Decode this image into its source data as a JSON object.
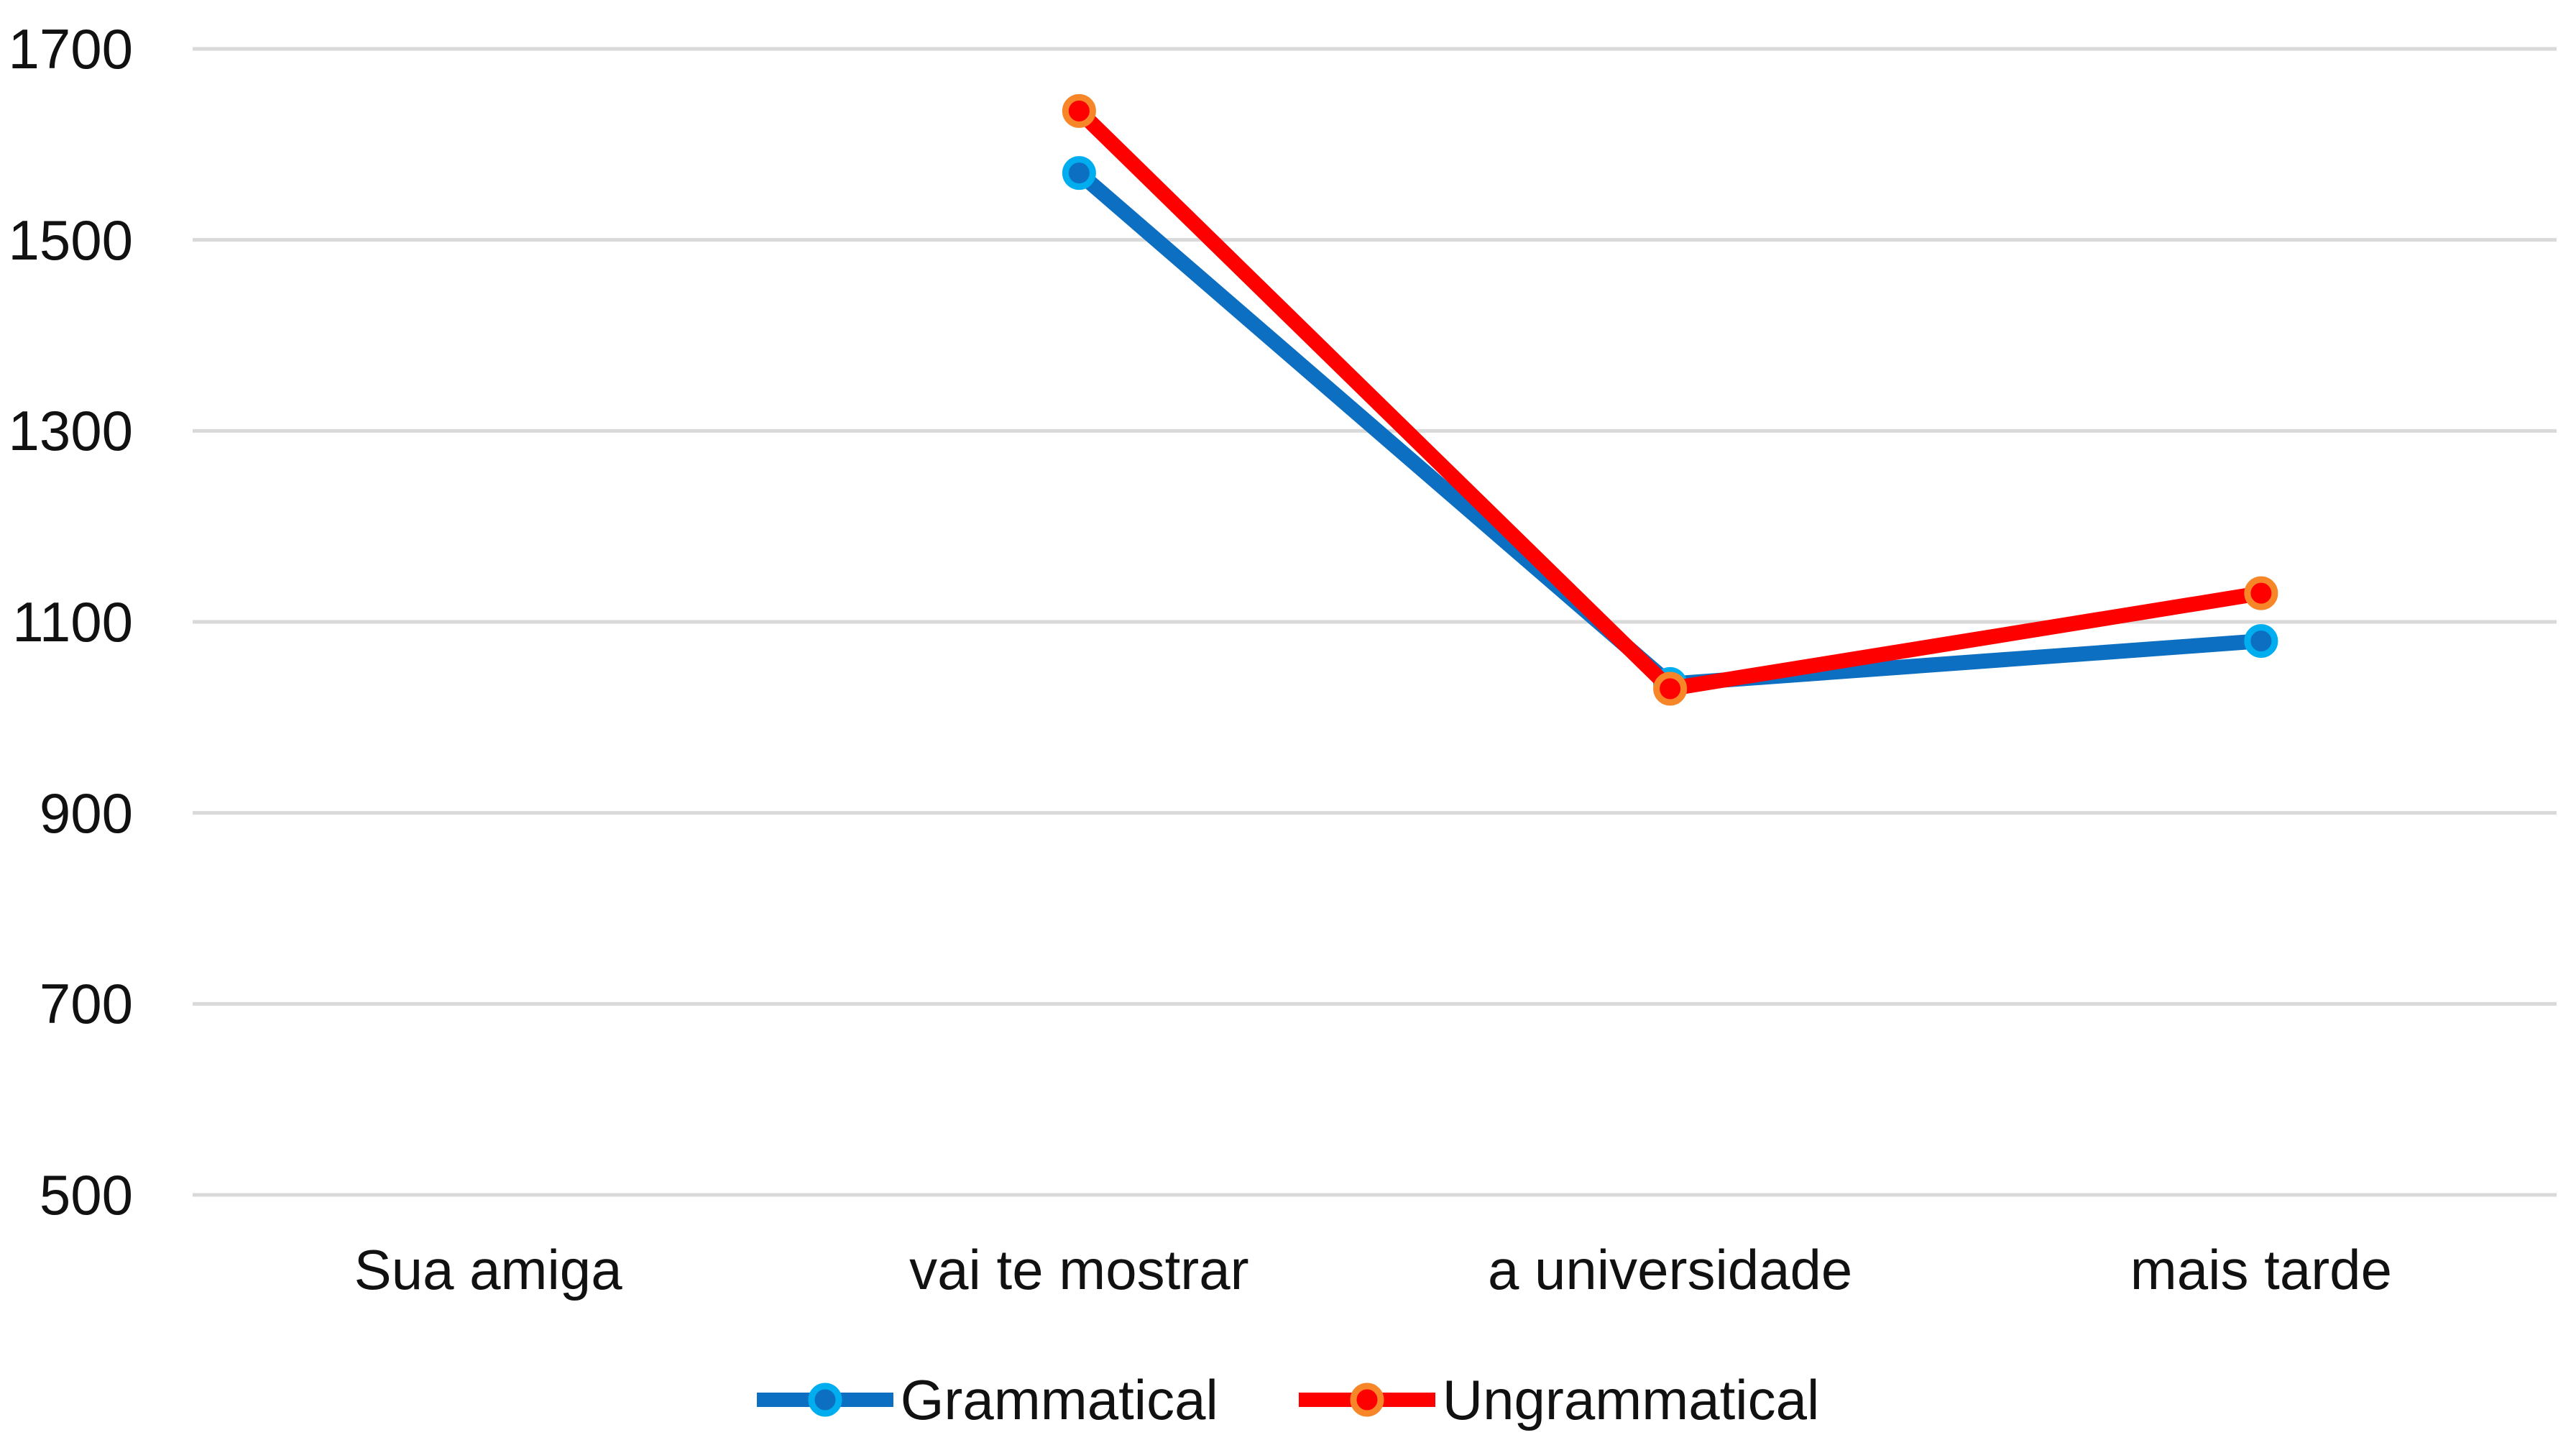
{
  "chart_data": {
    "type": "line",
    "title": "",
    "xlabel": "",
    "ylabel": "",
    "categories": [
      "Sua amiga",
      "vai te mostrar",
      "a universidade",
      "mais tarde"
    ],
    "series": [
      {
        "name": "Grammatical",
        "values": [
          null,
          1570,
          1035,
          1080
        ],
        "line_color": "#0D6FC2",
        "marker_ring_color": "#00AEEF"
      },
      {
        "name": "Ungrammatical",
        "values": [
          null,
          1635,
          1030,
          1130
        ],
        "line_color": "#FE0000",
        "marker_ring_color": "#F68628"
      }
    ],
    "ylim": [
      500,
      1700
    ],
    "yticks": [
      500,
      700,
      900,
      1100,
      1300,
      1500,
      1700
    ],
    "grid": "horizontal",
    "gridline_color": "#D9D9D9",
    "tick_label_color": "#111111",
    "legend_position": "bottom"
  }
}
